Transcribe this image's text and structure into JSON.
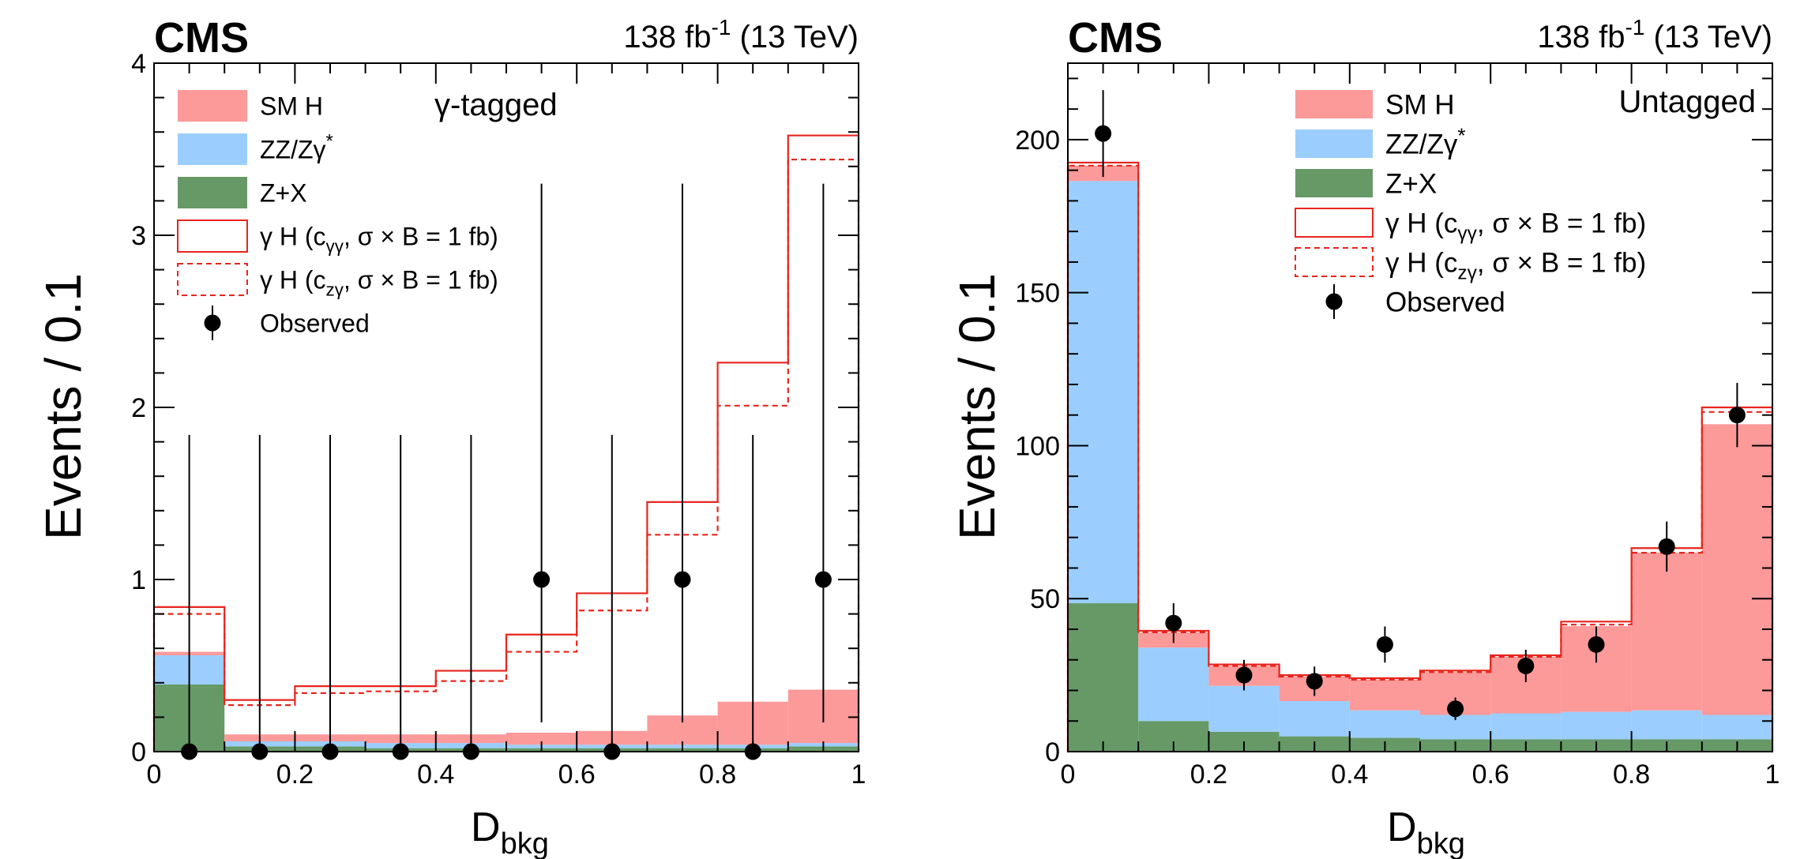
{
  "chart_data": [
    {
      "type": "bar",
      "experiment_label": "CMS",
      "lumi_label": "138 fb",
      "lumi_exponent": "-1",
      "energy_label": "(13 TeV)",
      "category_prefix": "γ",
      "category_suffix": "-tagged",
      "xlabel_main": "D",
      "xlabel_sub": "bkg",
      "ylabel": "Events / 0.1",
      "xlim": [
        0,
        1
      ],
      "ylim": [
        0,
        4
      ],
      "x_ticks": [
        "0",
        "0.2",
        "0.4",
        "0.6",
        "0.8",
        "1"
      ],
      "y_ticks": [
        "0",
        "1",
        "2",
        "3",
        "4"
      ],
      "bin_edges": [
        0,
        0.1,
        0.2,
        0.3,
        0.4,
        0.5,
        0.6,
        0.7,
        0.8,
        0.9,
        1.0
      ],
      "legend_position": "top-left",
      "legend": [
        {
          "kind": "fill",
          "color": "#fc9999",
          "label": "SM H"
        },
        {
          "kind": "fill",
          "color": "#9bceff",
          "label": "ZZ/Zγ",
          "sup": "*"
        },
        {
          "kind": "fill",
          "color": "#669966",
          "label": "Z+X"
        },
        {
          "kind": "line",
          "color": "#e8251e",
          "dash": false,
          "label_a": "γ H (c",
          "label_sub": "γγ",
          "label_b": ", σ × B = 1 fb)"
        },
        {
          "kind": "line",
          "color": "#e8251e",
          "dash": true,
          "label_a": "γ H (c",
          "label_sub": "zγ",
          "label_b": ", σ × B = 1 fb)"
        },
        {
          "kind": "marker",
          "label": "Observed"
        }
      ],
      "stack": [
        {
          "name": "Z+X",
          "color": "#669966",
          "values": [
            0.39,
            0.03,
            0.03,
            0.02,
            0.02,
            0.02,
            0.02,
            0.02,
            0.02,
            0.03
          ]
        },
        {
          "name": "ZZ/Zγ*",
          "color": "#9bceff",
          "values": [
            0.17,
            0.03,
            0.03,
            0.03,
            0.03,
            0.02,
            0.02,
            0.02,
            0.02,
            0.02
          ]
        },
        {
          "name": "SM H",
          "color": "#fc9999",
          "values": [
            0.02,
            0.04,
            0.04,
            0.05,
            0.05,
            0.07,
            0.08,
            0.17,
            0.25,
            0.31
          ]
        }
      ],
      "signal_solid": [
        0.84,
        0.3,
        0.38,
        0.38,
        0.47,
        0.68,
        0.92,
        1.45,
        2.26,
        3.58
      ],
      "signal_dashed": [
        0.8,
        0.27,
        0.34,
        0.35,
        0.41,
        0.58,
        0.82,
        1.26,
        2.01,
        3.44
      ],
      "observed": {
        "x": [
          0.05,
          0.15,
          0.25,
          0.35,
          0.45,
          0.55,
          0.65,
          0.75,
          0.85,
          0.95
        ],
        "y": [
          0,
          0,
          0,
          0,
          0,
          1,
          0,
          1,
          0,
          1
        ],
        "err_low": [
          0,
          0,
          0,
          0,
          0,
          0.83,
          0,
          0.83,
          0,
          0.83
        ],
        "err_high": [
          1.84,
          1.84,
          1.84,
          1.84,
          1.84,
          2.3,
          1.84,
          2.3,
          1.84,
          2.3
        ]
      }
    },
    {
      "type": "bar",
      "experiment_label": "CMS",
      "lumi_label": "138 fb",
      "lumi_exponent": "-1",
      "energy_label": "(13 TeV)",
      "category_prefix": "",
      "category_suffix": "Untagged",
      "xlabel_main": "D",
      "xlabel_sub": "bkg",
      "ylabel": "Events / 0.1",
      "xlim": [
        0,
        1
      ],
      "ylim": [
        0,
        225
      ],
      "x_ticks": [
        "0",
        "0.2",
        "0.4",
        "0.6",
        "0.8",
        "1"
      ],
      "y_ticks": [
        "0",
        "50",
        "100",
        "150",
        "200"
      ],
      "y_tick_values": [
        0,
        50,
        100,
        150,
        200
      ],
      "bin_edges": [
        0,
        0.1,
        0.2,
        0.3,
        0.4,
        0.5,
        0.6,
        0.7,
        0.8,
        0.9,
        1.0
      ],
      "legend_position": "top-right",
      "legend": [
        {
          "kind": "fill",
          "color": "#fc9999",
          "label": "SM H"
        },
        {
          "kind": "fill",
          "color": "#9bceff",
          "label": "ZZ/Zγ",
          "sup": "*"
        },
        {
          "kind": "fill",
          "color": "#669966",
          "label": "Z+X"
        },
        {
          "kind": "line",
          "color": "#e8251e",
          "dash": false,
          "label_a": "γ H (c",
          "label_sub": "γγ",
          "label_b": ", σ × B = 1 fb)"
        },
        {
          "kind": "line",
          "color": "#e8251e",
          "dash": true,
          "label_a": "γ H (c",
          "label_sub": "zγ",
          "label_b": ", σ × B = 1 fb)"
        },
        {
          "kind": "marker",
          "label": "Observed"
        }
      ],
      "stack": [
        {
          "name": "Z+X",
          "color": "#669966",
          "values": [
            48.5,
            10.0,
            6.5,
            5.0,
            4.5,
            4.0,
            4.0,
            4.0,
            4.0,
            4.0
          ]
        },
        {
          "name": "ZZ/Zγ*",
          "color": "#9bceff",
          "values": [
            138.0,
            24.0,
            15.0,
            11.5,
            9.0,
            8.0,
            8.5,
            9.0,
            9.5,
            8.0
          ]
        },
        {
          "name": "SM H",
          "color": "#fc9999",
          "values": [
            5.0,
            5.0,
            6.5,
            8.0,
            10.0,
            14.0,
            18.5,
            28.0,
            51.5,
            95.0
          ]
        }
      ],
      "signal_solid": [
        192.5,
        39.5,
        28.5,
        25.0,
        24.0,
        26.5,
        31.5,
        42.5,
        66.5,
        112.5
      ],
      "signal_dashed": [
        191.5,
        39.0,
        28.0,
        24.5,
        23.5,
        26.0,
        31.0,
        41.5,
        65.0,
        111.0
      ],
      "observed": {
        "x": [
          0.05,
          0.15,
          0.25,
          0.35,
          0.45,
          0.55,
          0.65,
          0.75,
          0.85,
          0.95
        ],
        "y": [
          202,
          42,
          25,
          23,
          35,
          14,
          28,
          35,
          67,
          110
        ],
        "err_low": [
          14.2,
          6.5,
          5.0,
          4.8,
          5.9,
          3.7,
          5.3,
          5.9,
          8.2,
          10.5
        ],
        "err_high": [
          14.2,
          6.5,
          5.0,
          4.8,
          5.9,
          3.7,
          5.3,
          5.9,
          8.2,
          10.5
        ]
      }
    }
  ]
}
